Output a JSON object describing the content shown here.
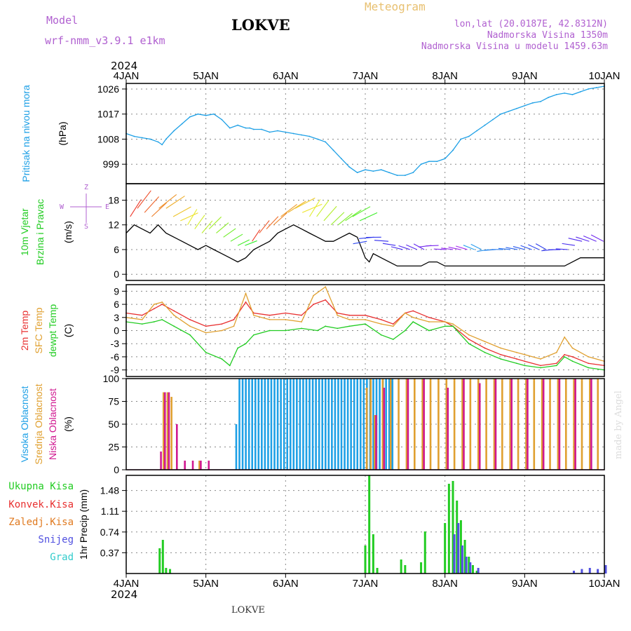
{
  "header": {
    "model_label": "Model",
    "model_name": "wrf-nmm_v3.9.1 e1km",
    "station": "LOKVE",
    "meteogram": "Meteogram",
    "lonlat": "lon,lat (20.0187E, 42.8312N)",
    "elev": "Nadmorska Visina 1350m",
    "elev_model": "Nadmorska Visina u modelu 1459.63m",
    "footer": "LOKVE",
    "watermark": "made by Angel",
    "year": "2024"
  },
  "colors": {
    "pressure": "#1ea0e6",
    "wind_speed": "#000000",
    "temp": "#e83030",
    "sfc_temp": "#e0a030",
    "dewpt": "#22cc22",
    "high_cloud": "#1ea0e6",
    "mid_cloud": "#e0a030",
    "low_cloud": "#d01890",
    "total_rain": "#22cc22",
    "conv_rain": "#e83030",
    "grid_rain": "#e07a20",
    "snow": "#5050e0",
    "hail": "#33cccc"
  },
  "time_axis": [
    "4JAN",
    "5JAN",
    "6JAN",
    "7JAN",
    "8JAN",
    "9JAN",
    "10JAN"
  ],
  "chart_data": [
    {
      "type": "line",
      "panel": "pressure",
      "ylabels": [
        "Pritisak na nivou mora",
        "(hPa)"
      ],
      "yticks": [
        999,
        1008,
        1017,
        1026
      ],
      "ylim": [
        992,
        1028
      ],
      "grid": true,
      "series": [
        {
          "x": [
            0,
            0.1,
            0.2,
            0.3,
            0.4,
            0.45,
            0.5,
            0.6,
            0.7,
            0.8,
            0.9,
            1.0,
            1.1,
            1.2,
            1.3,
            1.4,
            1.5,
            1.55,
            1.6,
            1.7,
            1.8,
            1.9,
            2.0,
            2.1,
            2.2,
            2.3,
            2.4,
            2.5,
            2.6,
            2.7,
            2.8,
            2.9,
            3.0,
            3.1,
            3.2,
            3.3,
            3.4,
            3.5,
            3.6,
            3.7,
            3.8,
            3.9,
            4.0,
            4.1,
            4.2,
            4.3,
            4.4,
            4.5,
            4.6,
            4.7,
            4.8,
            4.9,
            5.0,
            5.1,
            5.2,
            5.3,
            5.4,
            5.5,
            5.6,
            5.7,
            5.8,
            5.9,
            6.0
          ],
          "y": [
            1010,
            1009,
            1008.5,
            1008,
            1007,
            1006,
            1008,
            1011,
            1013.5,
            1016,
            1017,
            1016.5,
            1017,
            1015,
            1012,
            1013,
            1012,
            1012,
            1011.5,
            1011.5,
            1010.5,
            1011,
            1010.5,
            1010,
            1009.5,
            1009,
            1008,
            1007,
            1004,
            1001,
            998,
            996,
            997,
            996.5,
            997,
            996,
            995,
            995,
            996,
            999,
            1000,
            1000,
            1001,
            1004,
            1008,
            1009,
            1011,
            1013,
            1015,
            1017,
            1018,
            1019,
            1020,
            1021,
            1021.5,
            1023,
            1024,
            1024.5,
            1024,
            1025,
            1026,
            1026.5,
            1027
          ]
        }
      ]
    },
    {
      "type": "line",
      "panel": "wind",
      "ylabels": [
        "10m Vjetar",
        "Brzina i Pravac",
        "(m/s)"
      ],
      "compass": [
        "Z",
        "W",
        "E",
        "S"
      ],
      "yticks": [
        0,
        6,
        12,
        18
      ],
      "ylim": [
        -1.5,
        22
      ],
      "grid": true,
      "note": "wind speed line plus direction barbs",
      "series": [
        {
          "name": "speed",
          "x": [
            0,
            0.1,
            0.2,
            0.3,
            0.4,
            0.5,
            0.6,
            0.7,
            0.8,
            0.9,
            1.0,
            1.1,
            1.2,
            1.3,
            1.4,
            1.5,
            1.6,
            1.7,
            1.8,
            1.9,
            2.0,
            2.1,
            2.2,
            2.3,
            2.4,
            2.5,
            2.6,
            2.7,
            2.8,
            2.9,
            3.0,
            3.05,
            3.1,
            3.2,
            3.3,
            3.4,
            3.5,
            3.6,
            3.7,
            3.8,
            3.9,
            4.0,
            4.1,
            4.2,
            4.3,
            4.4,
            4.5,
            4.6,
            4.7,
            4.8,
            4.9,
            5.0,
            5.1,
            5.2,
            5.3,
            5.4,
            5.5,
            5.6,
            5.7,
            5.8,
            5.9,
            6.0
          ],
          "y": [
            10,
            12,
            11,
            10,
            12,
            10,
            9,
            8,
            7,
            6,
            7,
            6,
            5,
            4,
            3,
            4,
            6,
            7,
            8,
            10,
            11,
            12,
            11,
            10,
            9,
            8,
            8,
            9,
            10,
            9,
            4,
            3,
            5,
            4,
            3,
            2,
            2,
            2,
            2,
            3,
            3,
            2,
            2,
            2,
            2,
            2,
            2,
            2,
            2,
            2,
            2,
            2,
            2,
            2,
            2,
            2,
            2,
            3,
            4,
            4,
            4,
            4
          ]
        }
      ]
    },
    {
      "type": "line",
      "panel": "temperature",
      "ylabels": [
        "2m Temp",
        "SFC Temp",
        "dewpt Temp",
        "(C)"
      ],
      "yticks": [
        -9,
        -6,
        -3,
        0,
        3,
        6,
        9
      ],
      "ylim": [
        -10.5,
        10.5
      ],
      "grid": true,
      "series": [
        {
          "name": "2m Temp",
          "x": [
            0,
            0.2,
            0.35,
            0.45,
            0.6,
            0.8,
            1.0,
            1.2,
            1.35,
            1.5,
            1.6,
            1.8,
            2.0,
            2.2,
            2.35,
            2.5,
            2.65,
            2.8,
            3.0,
            3.2,
            3.35,
            3.5,
            3.6,
            3.8,
            4.0,
            4.1,
            4.3,
            4.5,
            4.7,
            4.9,
            5.0,
            5.2,
            5.4,
            5.5,
            5.6,
            5.8,
            6.0
          ],
          "y": [
            4,
            3.5,
            5,
            6,
            4.5,
            2.5,
            1,
            1.5,
            2.5,
            6.5,
            4,
            3.5,
            4,
            3.5,
            6,
            7,
            4,
            3.5,
            3.5,
            2.5,
            1.5,
            4,
            4.5,
            3,
            2,
            1,
            -2,
            -4,
            -5.5,
            -6.5,
            -7,
            -8,
            -7.5,
            -5.5,
            -6,
            -7.5,
            -8
          ]
        },
        {
          "name": "SFC Temp",
          "x": [
            0,
            0.2,
            0.35,
            0.45,
            0.6,
            0.8,
            1.0,
            1.2,
            1.35,
            1.5,
            1.6,
            1.8,
            2.0,
            2.2,
            2.35,
            2.5,
            2.65,
            2.8,
            3.0,
            3.2,
            3.35,
            3.5,
            3.6,
            3.8,
            4.0,
            4.1,
            4.3,
            4.5,
            4.7,
            4.9,
            5.0,
            5.2,
            5.4,
            5.5,
            5.6,
            5.8,
            6.0
          ],
          "y": [
            3,
            2.5,
            6,
            6.5,
            3.5,
            1,
            -0.5,
            0,
            1,
            8.5,
            3.5,
            2.5,
            2.5,
            2,
            8,
            10,
            3.5,
            2.5,
            2.5,
            1.5,
            1,
            4,
            3,
            2,
            2,
            1.5,
            -1,
            -2.5,
            -4,
            -5,
            -5.5,
            -6.5,
            -5,
            -1.5,
            -4,
            -6,
            -7
          ]
        },
        {
          "name": "dewpt Temp",
          "x": [
            0,
            0.2,
            0.35,
            0.45,
            0.6,
            0.8,
            1.0,
            1.2,
            1.3,
            1.4,
            1.5,
            1.6,
            1.8,
            2.0,
            2.2,
            2.4,
            2.5,
            2.65,
            2.8,
            3.0,
            3.2,
            3.35,
            3.5,
            3.6,
            3.8,
            4.0,
            4.1,
            4.3,
            4.5,
            4.7,
            4.9,
            5.0,
            5.2,
            5.4,
            5.5,
            5.6,
            5.8,
            6.0
          ],
          "y": [
            2,
            1.5,
            2,
            2.5,
            1,
            -1,
            -5,
            -6.5,
            -8,
            -4,
            -3,
            -1,
            0,
            0,
            0.5,
            0,
            1,
            0.5,
            1,
            1.5,
            -1,
            -2,
            0,
            2,
            0,
            1,
            1,
            -3,
            -5,
            -6.5,
            -7.5,
            -8,
            -8.5,
            -8,
            -6,
            -7,
            -8.5,
            -9
          ]
        }
      ]
    },
    {
      "type": "bar",
      "panel": "cloud",
      "ylabels": [
        "Visoka Oblacnost",
        "Srednja Oblacnost",
        "Niska Oblacnost",
        "(%)"
      ],
      "yticks": [
        0,
        25,
        50,
        75,
        100
      ],
      "ylim": [
        0,
        100
      ],
      "grid": true,
      "series": [
        {
          "name": "Visoka Oblacnost",
          "x": [
            1.38,
            1.42,
            1.46,
            1.5,
            1.54,
            1.58,
            1.62,
            1.66,
            1.7,
            1.74,
            1.78,
            1.82,
            1.86,
            1.9,
            1.94,
            1.98,
            2.02,
            2.06,
            2.1,
            2.14,
            2.18,
            2.22,
            2.26,
            2.3,
            2.34,
            2.38,
            2.42,
            2.46,
            2.5,
            2.54,
            2.58,
            2.62,
            2.66,
            2.7,
            2.74,
            2.78,
            2.82,
            2.86,
            2.9,
            2.94,
            2.98,
            3.02,
            3.06,
            3.1,
            3.14,
            3.18,
            3.22,
            3.26,
            3.3,
            3.34
          ],
          "y": [
            50,
            100,
            100,
            100,
            100,
            100,
            100,
            100,
            100,
            100,
            100,
            100,
            100,
            100,
            100,
            100,
            100,
            100,
            100,
            100,
            100,
            100,
            100,
            100,
            100,
            100,
            100,
            100,
            100,
            100,
            100,
            100,
            100,
            100,
            100,
            100,
            100,
            100,
            100,
            100,
            100,
            100,
            100,
            100,
            100,
            100,
            100,
            100,
            100,
            100
          ]
        },
        {
          "name": "Srednja Oblacnost",
          "x": [
            0.45,
            0.5,
            0.55,
            0.9,
            3.0,
            3.05,
            3.1,
            3.2,
            3.3,
            3.4,
            3.5,
            3.6,
            3.7,
            3.8,
            3.9,
            4.0,
            4.1,
            4.2,
            4.3,
            4.4,
            4.5,
            4.6,
            4.7,
            4.8,
            4.9,
            5.0,
            5.1,
            5.2,
            5.3,
            5.4,
            5.5,
            5.6,
            5.7,
            5.8,
            5.9
          ],
          "y": [
            85,
            85,
            80,
            10,
            90,
            100,
            60,
            100,
            100,
            100,
            100,
            100,
            100,
            100,
            100,
            100,
            100,
            100,
            100,
            100,
            100,
            100,
            100,
            100,
            100,
            100,
            100,
            100,
            100,
            100,
            100,
            100,
            100,
            100,
            100
          ]
        },
        {
          "name": "Niska Oblacnost",
          "x": [
            0.4,
            0.45,
            0.5,
            0.6,
            0.7,
            0.8,
            0.9,
            1.0,
            3.1,
            3.2,
            3.5,
            3.7,
            4.0,
            4.2,
            4.4,
            4.6,
            4.8,
            5.0,
            5.2,
            5.4,
            5.6,
            5.8
          ],
          "y": [
            20,
            85,
            85,
            50,
            10,
            10,
            10,
            10,
            60,
            90,
            100,
            100,
            90,
            100,
            95,
            100,
            100,
            100,
            100,
            100,
            100,
            100
          ]
        }
      ]
    },
    {
      "type": "bar",
      "panel": "precip",
      "ylabels": [
        "Ukupna Kisa",
        "Konvek.Kisa",
        "Zaledj.Kisa",
        "Snijeg",
        "Grad",
        "1hr Precip (mm)"
      ],
      "yticks": [
        0.37,
        0.74,
        1.11,
        1.48
      ],
      "ylim": [
        0,
        1.75
      ],
      "grid": true,
      "series": [
        {
          "name": "Ukupna Kisa",
          "x": [
            0.42,
            0.46,
            0.5,
            0.55,
            3.0,
            3.05,
            3.1,
            3.15,
            3.45,
            3.5,
            3.7,
            3.75,
            4.0,
            4.05,
            4.1,
            4.15,
            4.2,
            4.25,
            4.3,
            4.35,
            4.4
          ],
          "y": [
            0.45,
            0.6,
            0.1,
            0.08,
            0.5,
            1.75,
            0.7,
            0.1,
            0.25,
            0.15,
            0.2,
            0.75,
            0.9,
            1.6,
            1.65,
            1.3,
            0.95,
            0.6,
            0.3,
            0.15,
            0.05
          ]
        },
        {
          "name": "Snijeg",
          "x": [
            4.1,
            4.15,
            4.2,
            4.25,
            4.3,
            4.4,
            5.6,
            5.7,
            5.8,
            5.9,
            6.0
          ],
          "y": [
            0.7,
            0.9,
            0.5,
            0.3,
            0.2,
            0.1,
            0.05,
            0.08,
            0.1,
            0.08,
            0.15
          ]
        }
      ]
    }
  ]
}
